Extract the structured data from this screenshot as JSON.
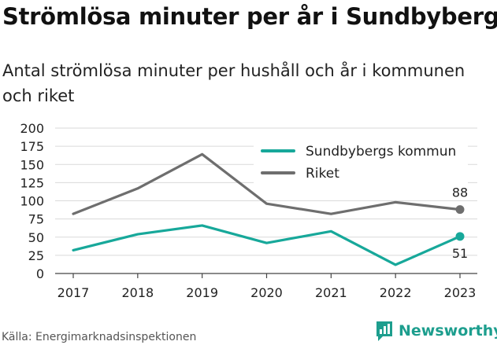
{
  "header": {
    "title": "Strömlösa minuter per år i Sundbyberg",
    "subtitle": "Antal strömlösa minuter per hushåll och år i kommunen och riket"
  },
  "footer": {
    "source": "Källa: Energimarknadsinspektionen",
    "brand": "Newsworthy"
  },
  "colors": {
    "sundbyberg": "#17a89a",
    "riket": "#6e6e6e",
    "grid": "#d9d9d9",
    "brand": "#1d9e8e"
  },
  "chart_data": {
    "type": "line",
    "title": "Strömlösa minuter per år i Sundbyberg",
    "x": [
      "2017",
      "2018",
      "2019",
      "2020",
      "2021",
      "2022",
      "2023"
    ],
    "yticks": [
      "0",
      "25",
      "50",
      "75",
      "100",
      "125",
      "150",
      "175",
      "200"
    ],
    "ylim": [
      0,
      200
    ],
    "grid": true,
    "legend_position": "top-right",
    "series": [
      {
        "name": "Sundbybergs kommun",
        "values": [
          32,
          54,
          66,
          42,
          58,
          12,
          51
        ],
        "color": "#17a89a",
        "end_label": "51"
      },
      {
        "name": "Riket",
        "values": [
          82,
          117,
          164,
          96,
          82,
          98,
          88
        ],
        "color": "#6e6e6e",
        "end_label": "88"
      }
    ]
  }
}
